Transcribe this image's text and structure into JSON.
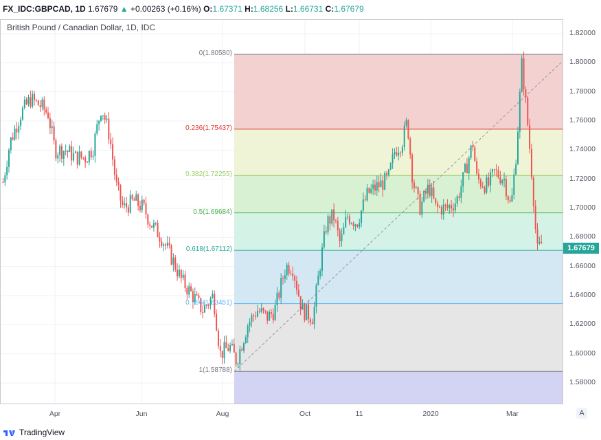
{
  "header": {
    "symbol": "FX_IDC:GBPCAD, 1D",
    "last": "1.67679",
    "arrow": "▲",
    "change": "+0.00263 (+0.16%)",
    "o_label": "O:",
    "o": "1.67371",
    "h_label": "H:",
    "h": "1.68256",
    "l_label": "L:",
    "l": "1.66731",
    "c_label": "C:",
    "c": "1.67679"
  },
  "chart_title": "British Pound / Canadian Dollar, 1D, IDC",
  "last_price_label": "1.67679",
  "auto_scale_button": "A",
  "brand": "TradingView",
  "colors": {
    "up": "#26a69a",
    "down": "#ef5350"
  },
  "chart_data": {
    "type": "candlestick",
    "ylim": [
      1.57,
      1.825
    ],
    "y_ticks": [
      "1.82000",
      "1.80000",
      "1.78000",
      "1.76000",
      "1.74000",
      "1.72000",
      "1.70000",
      "1.68000",
      "1.66000",
      "1.64000",
      "1.62000",
      "1.60000",
      "1.58000"
    ],
    "x_ticks": [
      "Apr",
      "Jun",
      "Aug",
      "Oct",
      "11",
      "2020",
      "Mar"
    ],
    "grid": true,
    "close_path": [
      [
        "2019-02-22",
        1.718
      ],
      [
        "2019-02-27",
        1.745
      ],
      [
        "2019-03-07",
        1.765
      ],
      [
        "2019-03-14",
        1.775
      ],
      [
        "2019-03-22",
        1.77
      ],
      [
        "2019-03-27",
        1.765
      ],
      [
        "2019-04-01",
        1.74
      ],
      [
        "2019-04-09",
        1.74
      ],
      [
        "2019-04-16",
        1.735
      ],
      [
        "2019-04-24",
        1.735
      ],
      [
        "2019-04-29",
        1.742
      ],
      [
        "2019-05-05",
        1.77
      ],
      [
        "2019-05-11",
        1.75
      ],
      [
        "2019-05-16",
        1.715
      ],
      [
        "2019-05-21",
        1.7
      ],
      [
        "2019-05-29",
        1.705
      ],
      [
        "2019-06-05",
        1.7
      ],
      [
        "2019-06-10",
        1.69
      ],
      [
        "2019-06-18",
        1.68
      ],
      [
        "2019-06-26",
        1.665
      ],
      [
        "2019-07-03",
        1.65
      ],
      [
        "2019-07-11",
        1.64
      ],
      [
        "2019-07-18",
        1.63
      ],
      [
        "2019-07-26",
        1.64
      ],
      [
        "2019-07-31",
        1.6
      ],
      [
        "2019-08-07",
        1.605
      ],
      [
        "2019-08-12",
        1.595
      ],
      [
        "2019-08-20",
        1.62
      ],
      [
        "2019-08-27",
        1.63
      ],
      [
        "2019-09-04",
        1.625
      ],
      [
        "2019-09-09",
        1.63
      ],
      [
        "2019-09-17",
        1.66
      ],
      [
        "2019-09-22",
        1.66
      ],
      [
        "2019-09-29",
        1.63
      ],
      [
        "2019-10-07",
        1.625
      ],
      [
        "2019-10-12",
        1.66
      ],
      [
        "2019-10-17",
        1.69
      ],
      [
        "2019-10-22",
        1.695
      ],
      [
        "2019-10-27",
        1.675
      ],
      [
        "2019-11-01",
        1.695
      ],
      [
        "2019-11-08",
        1.69
      ],
      [
        "2019-11-16",
        1.71
      ],
      [
        "2019-11-23",
        1.715
      ],
      [
        "2019-12-01",
        1.72
      ],
      [
        "2019-12-06",
        1.74
      ],
      [
        "2019-12-11",
        1.745
      ],
      [
        "2019-12-15",
        1.76
      ],
      [
        "2019-12-19",
        1.72
      ],
      [
        "2019-12-24",
        1.7
      ],
      [
        "2019-12-31",
        1.715
      ],
      [
        "2020-01-05",
        1.7
      ],
      [
        "2020-01-13",
        1.7
      ],
      [
        "2020-01-20",
        1.705
      ],
      [
        "2020-01-25",
        1.72
      ],
      [
        "2020-02-01",
        1.745
      ],
      [
        "2020-02-04",
        1.72
      ],
      [
        "2020-02-12",
        1.715
      ],
      [
        "2020-02-17",
        1.725
      ],
      [
        "2020-02-24",
        1.72
      ],
      [
        "2020-02-29",
        1.7
      ],
      [
        "2020-03-04",
        1.74
      ],
      [
        "2020-03-08",
        1.8
      ],
      [
        "2020-03-12",
        1.76
      ],
      [
        "2020-03-16",
        1.715
      ],
      [
        "2020-03-19",
        1.67
      ],
      [
        "2020-03-23",
        1.677
      ]
    ],
    "fib_levels": [
      {
        "label": "0(1.80580)",
        "ratio": 0,
        "price": 1.8058,
        "line": "#787b86",
        "fill": "#f2d1d0",
        "text": "#787b86"
      },
      {
        "label": "0.236(1.75437)",
        "ratio": 0.236,
        "price": 1.75437,
        "line": "#e53935",
        "fill": "#eff4d6",
        "text": "#e53935"
      },
      {
        "label": "0.382(1.72255)",
        "ratio": 0.382,
        "price": 1.72255,
        "line": "#9ccc65",
        "fill": "#d9f1d3",
        "text": "#9ccc65"
      },
      {
        "label": "0.5(1.69684)",
        "ratio": 0.5,
        "price": 1.69684,
        "line": "#4caf50",
        "fill": "#d4f2e6",
        "text": "#4caf50"
      },
      {
        "label": "0.618(1.67112)",
        "ratio": 0.618,
        "price": 1.67112,
        "line": "#26a69a",
        "fill": "#d4e8f3",
        "text": "#26a69a"
      },
      {
        "label": "0.786(1.63451)",
        "ratio": 0.786,
        "price": 1.63451,
        "line": "#64b5f6",
        "fill": "#e6e6e6",
        "text": "#64b5f6"
      },
      {
        "label": "1(1.58788)",
        "ratio": 1,
        "price": 1.58788,
        "line": "#787b86",
        "fill": "#d3d3f4",
        "text": "#787b86"
      }
    ]
  }
}
